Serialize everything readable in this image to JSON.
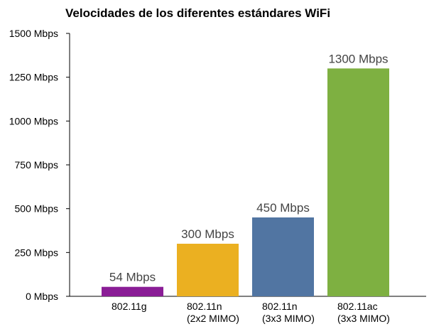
{
  "chart_data": {
    "type": "bar",
    "title": "Velocidades de los diferentes estándares WiFi",
    "xlabel": "",
    "ylabel": "",
    "ylim": [
      0,
      1500
    ],
    "yticks": [
      0,
      250,
      500,
      750,
      1000,
      1250,
      1500
    ],
    "ytick_labels": [
      "0 Mbps",
      "250 Mbps",
      "500 Mbps",
      "750 Mbps",
      "1000 Mbps",
      "1250 Mbps",
      "1500 Mbps"
    ],
    "grid": false,
    "legend": "none",
    "categories": [
      [
        "802.11g"
      ],
      [
        "802.11n",
        "(2x2 MIMO)"
      ],
      [
        "802.11n",
        "(3x3 MIMO)"
      ],
      [
        "802.11ac",
        "(3x3 MIMO)"
      ]
    ],
    "values": [
      54,
      300,
      450,
      1300
    ],
    "data_labels": [
      "54 Mbps",
      "300 Mbps",
      "450 Mbps",
      "1300 Mbps"
    ],
    "colors": [
      "#8a1d96",
      "#ebb021",
      "#5175a2",
      "#7eb041"
    ]
  }
}
